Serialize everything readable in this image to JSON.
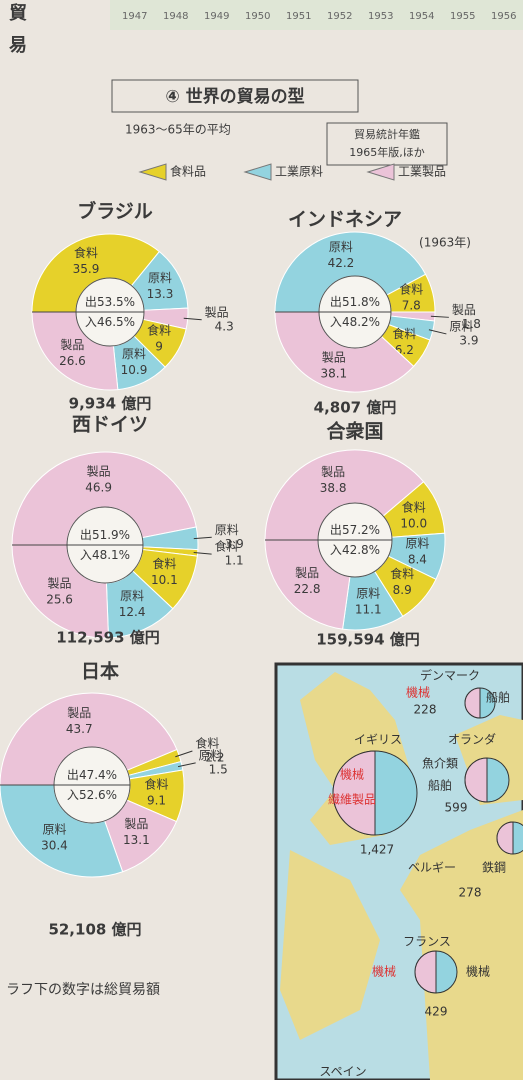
{
  "header": {
    "side": [
      "貿",
      "易"
    ],
    "years": [
      "1947",
      "1948",
      "1949",
      "1950",
      "1951",
      "1952",
      "1953",
      "1954",
      "1955",
      "1956"
    ]
  },
  "title": "④ 世界の貿易の型",
  "subtitle": "1963～65年の平均",
  "source": [
    "貿易統計年鑑",
    "1965年版,ほか"
  ],
  "legend": [
    {
      "name": "食料品",
      "color": "#e6d12a"
    },
    {
      "name": "工業原料",
      "color": "#93d3df"
    },
    {
      "name": "工業製品",
      "color": "#ebc3d8"
    }
  ],
  "chart_data": [
    {
      "type": "donut",
      "title": "ブラジル",
      "total": "9,934 億円",
      "unit": "%",
      "export": {
        "label": "出",
        "value": 53.5
      },
      "import": {
        "label": "入",
        "value": 46.5
      },
      "segments": [
        {
          "name": "食料",
          "value": 35.9,
          "color": "#e6d12a"
        },
        {
          "name": "原料",
          "value": 13.3,
          "color": "#93d3df"
        },
        {
          "name": "製品",
          "value": 4.3,
          "color": "#ebc3d8"
        },
        {
          "name": "食料",
          "value": 9.0,
          "color": "#e6d12a"
        },
        {
          "name": "原料",
          "value": 10.9,
          "color": "#93d3df"
        },
        {
          "name": "製品",
          "value": 26.6,
          "color": "#ebc3d8"
        }
      ]
    },
    {
      "type": "donut",
      "title": "インドネシア",
      "note": "(1963年)",
      "total": "4,807 億円",
      "unit": "%",
      "export": {
        "label": "出",
        "value": 51.8
      },
      "import": {
        "label": "入",
        "value": 48.2
      },
      "segments": [
        {
          "name": "原料",
          "value": 42.2,
          "color": "#93d3df"
        },
        {
          "name": "食料",
          "value": 7.8,
          "color": "#e6d12a"
        },
        {
          "name": "製品",
          "value": 1.8,
          "color": "#ebc3d8"
        },
        {
          "name": "原料",
          "value": 3.9,
          "color": "#93d3df"
        },
        {
          "name": "食料",
          "value": 6.2,
          "color": "#e6d12a"
        },
        {
          "name": "製品",
          "value": 38.1,
          "color": "#ebc3d8"
        }
      ]
    },
    {
      "type": "donut",
      "title": "西ドイツ",
      "total": "112,593 億円",
      "unit": "%",
      "export": {
        "label": "出",
        "value": 51.9
      },
      "import": {
        "label": "入",
        "value": 48.1
      },
      "segments": [
        {
          "name": "製品",
          "value": 46.9,
          "color": "#ebc3d8"
        },
        {
          "name": "原料",
          "value": 3.9,
          "color": "#93d3df"
        },
        {
          "name": "食料",
          "value": 1.1,
          "color": "#e6d12a"
        },
        {
          "name": "食料",
          "value": 10.1,
          "color": "#e6d12a"
        },
        {
          "name": "原料",
          "value": 12.4,
          "color": "#93d3df"
        },
        {
          "name": "製品",
          "value": 25.6,
          "color": "#ebc3d8"
        }
      ]
    },
    {
      "type": "donut",
      "title": "合衆国",
      "total": "159,594 億円",
      "unit": "%",
      "export": {
        "label": "出",
        "value": 57.2
      },
      "import": {
        "label": "入",
        "value": 42.8
      },
      "segments": [
        {
          "name": "製品",
          "value": 38.8,
          "color": "#ebc3d8"
        },
        {
          "name": "食料",
          "value": 10.0,
          "value_label": "10.0",
          "color": "#e6d12a"
        },
        {
          "name": "原料",
          "value": 8.4,
          "color": "#93d3df"
        },
        {
          "name": "食料",
          "value": 8.9,
          "color": "#e6d12a"
        },
        {
          "name": "原料",
          "value": 11.1,
          "color": "#93d3df"
        },
        {
          "name": "製品",
          "value": 22.8,
          "color": "#ebc3d8"
        }
      ]
    },
    {
      "type": "donut",
      "title": "日本",
      "total": "52,108 億円",
      "unit": "%",
      "export": {
        "label": "出",
        "value": 47.4
      },
      "import": {
        "label": "入",
        "value": 52.6
      },
      "segments": [
        {
          "name": "製品",
          "value": 43.7,
          "color": "#ebc3d8"
        },
        {
          "name": "食料",
          "value": 2.2,
          "color": "#e6d12a"
        },
        {
          "name": "原料",
          "value": 1.5,
          "color": "#93d3df"
        },
        {
          "name": "食料",
          "value": 9.1,
          "color": "#e6d12a"
        },
        {
          "name": "製品",
          "value": 13.1,
          "color": "#ebc3d8"
        },
        {
          "name": "原料",
          "value": 30.4,
          "color": "#93d3df"
        }
      ]
    }
  ],
  "map": {
    "labels": [
      "デンマーク",
      "機械",
      "船舶",
      "228",
      "イギリス",
      "魚介類",
      "船舶",
      "機械",
      "繊維製品",
      "1,427",
      "オランダ",
      "599",
      "ベルギー",
      "鉄鋼",
      "278",
      "フランス",
      "機械",
      "機械",
      "429",
      "スペイン"
    ]
  },
  "footnote": "ラフ下の数字は総貿易額"
}
